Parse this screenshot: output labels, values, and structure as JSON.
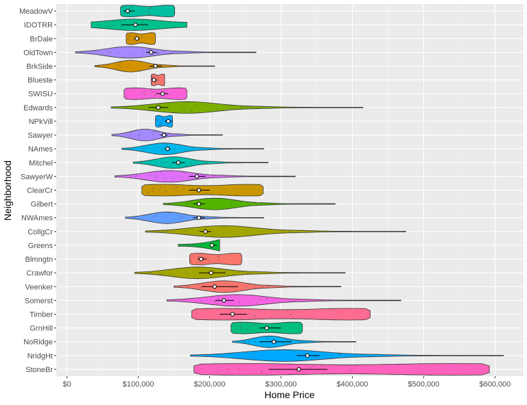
{
  "chart_data": {
    "type": "violin",
    "xlabel": "Home Price",
    "ylabel": "Neighborhood",
    "xlim": [
      -15000,
      640000
    ],
    "x_ticks": [
      0,
      100000,
      200000,
      300000,
      400000,
      500000,
      600000
    ],
    "x_tick_labels": [
      "$0",
      "$100,000",
      "$200,000",
      "$300,000",
      "$400,000",
      "$500,000",
      "$600,000"
    ],
    "grid": true,
    "legend": "none",
    "series": [
      {
        "name": "MeadowV",
        "min": 75000,
        "max": 151000,
        "mean": 85000,
        "ci": [
          79000,
          95000
        ],
        "color": "#00BFA0",
        "shape": "box"
      },
      {
        "name": "IDOTRR",
        "min": 34000,
        "max": 168000,
        "mean": 96000,
        "ci": [
          76000,
          114000
        ],
        "color": "#00C08B",
        "shape": "wide"
      },
      {
        "name": "BrDale",
        "min": 83000,
        "max": 124000,
        "mean": 98000,
        "ci": [
          94000,
          102000
        ],
        "color": "#D39200",
        "shape": "box"
      },
      {
        "name": "OldTown",
        "min": 12000,
        "max": 265000,
        "mean": 118000,
        "ci": [
          111000,
          126000
        ],
        "color": "#A58AFF",
        "shape": "center"
      },
      {
        "name": "BrkSide",
        "min": 39000,
        "max": 207000,
        "mean": 124000,
        "ci": [
          116000,
          133000
        ],
        "color": "#D39200",
        "shape": "center"
      },
      {
        "name": "Blueste",
        "min": 118000,
        "max": 137000,
        "mean": 122000,
        "ci": [
          119000,
          126000
        ],
        "color": "#F8766D",
        "shape": "box"
      },
      {
        "name": "SWISU",
        "min": 80000,
        "max": 168000,
        "mean": 134000,
        "ci": [
          126000,
          142000
        ],
        "color": "#FB61D7",
        "shape": "box"
      },
      {
        "name": "Edwards",
        "min": 62000,
        "max": 415000,
        "mean": 128000,
        "ci": [
          114000,
          142000
        ],
        "color": "#7CAE00",
        "shape": "center"
      },
      {
        "name": "NPkVill",
        "min": 124000,
        "max": 148000,
        "mean": 142000,
        "ci": [
          137000,
          147000
        ],
        "color": "#00A9FF",
        "shape": "box"
      },
      {
        "name": "Sawyer",
        "min": 63000,
        "max": 218000,
        "mean": 136000,
        "ci": [
          131000,
          141000
        ],
        "color": "#A58AFF",
        "shape": "center"
      },
      {
        "name": "NAmes",
        "min": 77000,
        "max": 276000,
        "mean": 141000,
        "ci": [
          137000,
          145000
        ],
        "color": "#00B6EB",
        "shape": "center"
      },
      {
        "name": "Mitchel",
        "min": 93000,
        "max": 282000,
        "mean": 156000,
        "ci": [
          147000,
          165000
        ],
        "color": "#00C0AF",
        "shape": "center"
      },
      {
        "name": "SawyerW",
        "min": 67000,
        "max": 320000,
        "mean": 182000,
        "ci": [
          171000,
          194000
        ],
        "color": "#DF70F8",
        "shape": "center"
      },
      {
        "name": "ClearCr",
        "min": 105000,
        "max": 275000,
        "mean": 185000,
        "ci": [
          171000,
          200000
        ],
        "color": "#C99800",
        "shape": "box"
      },
      {
        "name": "Gilbert",
        "min": 135000,
        "max": 376000,
        "mean": 185000,
        "ci": [
          177000,
          193000
        ],
        "color": "#53B400",
        "shape": "center"
      },
      {
        "name": "NWAmes",
        "min": 82000,
        "max": 276000,
        "mean": 185000,
        "ci": [
          178000,
          193000
        ],
        "color": "#619CFF",
        "shape": "center"
      },
      {
        "name": "CollgCr",
        "min": 110000,
        "max": 475000,
        "mean": 194000,
        "ci": [
          186000,
          202000
        ],
        "color": "#A3A500",
        "shape": "center"
      },
      {
        "name": "Greens",
        "min": 156000,
        "max": 214000,
        "mean": 203000,
        "ci": [
          200000,
          210000
        ],
        "color": "#00BA38",
        "shape": "right"
      },
      {
        "name": "Blmngtn",
        "min": 172000,
        "max": 245000,
        "mean": 188000,
        "ci": [
          183000,
          196000
        ],
        "color": "#F8766D",
        "shape": "box"
      },
      {
        "name": "Crawfor",
        "min": 95000,
        "max": 390000,
        "mean": 202000,
        "ci": [
          185000,
          222000
        ],
        "color": "#A3A500",
        "shape": "center"
      },
      {
        "name": "Veenker",
        "min": 150000,
        "max": 384000,
        "mean": 207000,
        "ci": [
          189000,
          240000
        ],
        "color": "#F8766D",
        "shape": "center"
      },
      {
        "name": "Somerst",
        "min": 140000,
        "max": 468000,
        "mean": 220000,
        "ci": [
          208000,
          234000
        ],
        "color": "#F564E3",
        "shape": "center"
      },
      {
        "name": "Timber",
        "min": 175000,
        "max": 425000,
        "mean": 232000,
        "ci": [
          214000,
          252000
        ],
        "color": "#FF6C91",
        "shape": "box"
      },
      {
        "name": "GrnHill",
        "min": 230000,
        "max": 330000,
        "mean": 280000,
        "ci": [
          270000,
          300000
        ],
        "color": "#00BF7D",
        "shape": "box"
      },
      {
        "name": "NoRidge",
        "min": 232000,
        "max": 405000,
        "mean": 290000,
        "ci": [
          270000,
          315000
        ],
        "color": "#00B0F6",
        "shape": "center"
      },
      {
        "name": "NridgHt",
        "min": 173000,
        "max": 612000,
        "mean": 337000,
        "ci": [
          322000,
          354000
        ],
        "color": "#00A9FF",
        "shape": "center"
      },
      {
        "name": "StoneBr",
        "min": 178000,
        "max": 592000,
        "mean": 325000,
        "ci": [
          283000,
          365000
        ],
        "color": "#FF62BC",
        "shape": "box"
      }
    ]
  }
}
